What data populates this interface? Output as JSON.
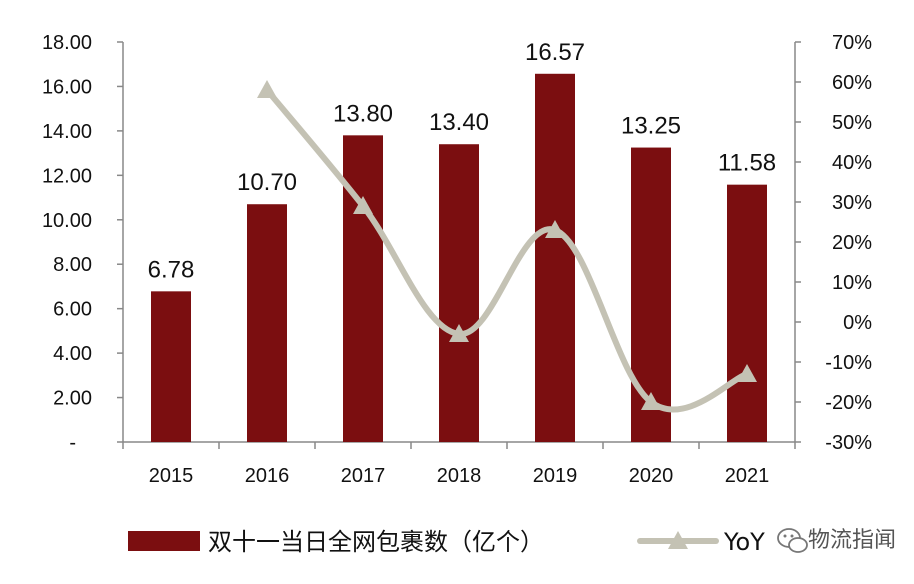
{
  "chart_data": {
    "type": "bar",
    "categories": [
      "2015",
      "2016",
      "2017",
      "2018",
      "2019",
      "2020",
      "2021"
    ],
    "series": [
      {
        "name": "双十一当日全网包裹数（亿个）",
        "type": "bar",
        "axis": "left",
        "values": [
          6.78,
          10.7,
          13.8,
          13.4,
          16.57,
          13.25,
          11.58
        ],
        "labels": [
          "6.78",
          "10.70",
          "13.80",
          "13.40",
          "16.57",
          "13.25",
          "11.58"
        ],
        "color": "#7b0e10"
      },
      {
        "name": "YoY",
        "type": "line",
        "axis": "right",
        "values": [
          null,
          58,
          29,
          -3,
          23,
          -20,
          -13
        ],
        "color": "#c4c2b4"
      }
    ],
    "y_left": {
      "lim": [
        0,
        18
      ],
      "ticks": [
        0,
        2,
        4,
        6,
        8,
        10,
        12,
        14,
        16,
        18
      ],
      "tick_labels": [
        "-",
        "2.00",
        "4.00",
        "6.00",
        "8.00",
        "10.00",
        "12.00",
        "14.00",
        "16.00",
        "18.00"
      ]
    },
    "y_right": {
      "lim": [
        -30,
        70
      ],
      "ticks": [
        -30,
        -20,
        -10,
        0,
        10,
        20,
        30,
        40,
        50,
        60,
        70
      ],
      "tick_labels": [
        "-30%",
        "-20%",
        "-10%",
        "0%",
        "10%",
        "20%",
        "30%",
        "40%",
        "50%",
        "60%",
        "70%"
      ]
    },
    "grid": false,
    "legend_position": "bottom"
  },
  "watermark": {
    "text": "物流指闻",
    "icon": "wechat-icon"
  }
}
